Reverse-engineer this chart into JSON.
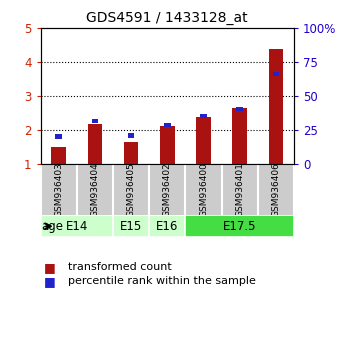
{
  "title": "GDS4591 / 1433128_at",
  "samples": [
    "GSM936403",
    "GSM936404",
    "GSM936405",
    "GSM936402",
    "GSM936400",
    "GSM936401",
    "GSM936406"
  ],
  "transformed_count": [
    1.52,
    2.18,
    1.67,
    2.13,
    2.38,
    2.65,
    4.38
  ],
  "percentile_rank": [
    1.82,
    2.27,
    1.85,
    2.15,
    2.42,
    2.63,
    3.65
  ],
  "age_group_configs": [
    {
      "label": "E14",
      "start": 0,
      "end": 2,
      "color": "#ccffcc"
    },
    {
      "label": "E15",
      "start": 2,
      "end": 3,
      "color": "#ccffcc"
    },
    {
      "label": "E16",
      "start": 3,
      "end": 4,
      "color": "#ccffcc"
    },
    {
      "label": "E17.5",
      "start": 4,
      "end": 7,
      "color": "#44dd44"
    }
  ],
  "ylim_left": [
    1,
    5
  ],
  "ylim_right": [
    0,
    100
  ],
  "yticks_left": [
    1,
    2,
    3,
    4,
    5
  ],
  "yticks_right": [
    0,
    25,
    50,
    75,
    100
  ],
  "bar_color": "#aa1111",
  "dot_color": "#2222cc",
  "background_color": "#ffffff",
  "sample_area_bg": "#cccccc",
  "left_tick_color": "#cc2200",
  "right_tick_color": "#2200cc",
  "legend_red": "transformed count",
  "legend_blue": "percentile rank within the sample"
}
